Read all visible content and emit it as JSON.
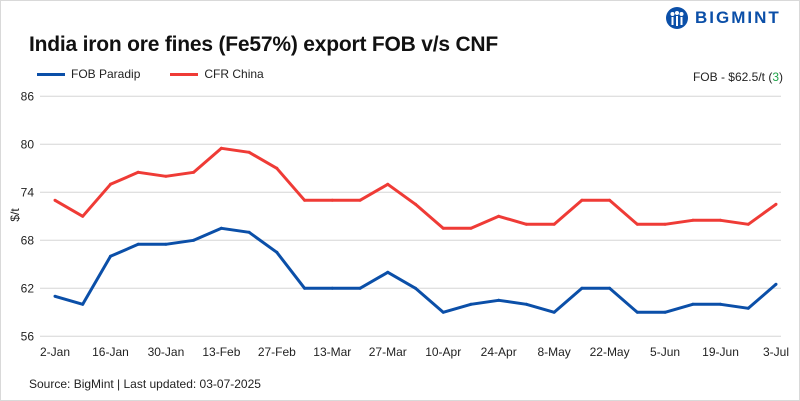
{
  "logo": {
    "text": "BIGMINT"
  },
  "chart_data": {
    "type": "line",
    "title": "India iron ore fines (Fe57%) export FOB v/s CNF",
    "ylabel": "$/t",
    "xlabel": "",
    "ylim": [
      56,
      86
    ],
    "yticks": [
      56,
      62,
      68,
      74,
      80,
      86
    ],
    "grid": true,
    "legend_position": "top-left",
    "x": [
      "2-Jan",
      "9-Jan",
      "16-Jan",
      "23-Jan",
      "30-Jan",
      "6-Feb",
      "13-Feb",
      "20-Feb",
      "27-Feb",
      "6-Mar",
      "13-Mar",
      "20-Mar",
      "27-Mar",
      "3-Apr",
      "10-Apr",
      "17-Apr",
      "24-Apr",
      "1-May",
      "8-May",
      "15-May",
      "22-May",
      "29-May",
      "5-Jun",
      "12-Jun",
      "19-Jun",
      "26-Jun",
      "3-Jul"
    ],
    "xtick_labels": [
      "2-Jan",
      "16-Jan",
      "30-Jan",
      "13-Feb",
      "27-Feb",
      "13-Mar",
      "27-Mar",
      "10-Apr",
      "24-Apr",
      "8-May",
      "22-May",
      "5-Jun",
      "19-Jun",
      "3-Jul"
    ],
    "series": [
      {
        "name": "FOB Paradip",
        "color": "#0b4fa8",
        "values": [
          61,
          60,
          66,
          67.5,
          67.5,
          68,
          69.5,
          69,
          66.5,
          62,
          62,
          62,
          64,
          62,
          59,
          60,
          60.5,
          60,
          59,
          62,
          62,
          59,
          59,
          60,
          60,
          59.5,
          62.5
        ]
      },
      {
        "name": "CFR China",
        "color": "#ef3b36",
        "values": [
          73,
          71,
          75,
          76.5,
          76,
          76.5,
          79.5,
          79,
          77,
          73,
          73,
          73,
          75,
          72.5,
          69.5,
          69.5,
          71,
          70,
          70,
          73,
          73,
          70,
          70,
          70.5,
          70.5,
          70,
          72.5
        ]
      }
    ],
    "annotation": {
      "prefix": "FOB - $62.5/t (",
      "change": "3",
      "suffix": ")"
    }
  },
  "source": "Source: BigMint | Last updated: 03-07-2025"
}
